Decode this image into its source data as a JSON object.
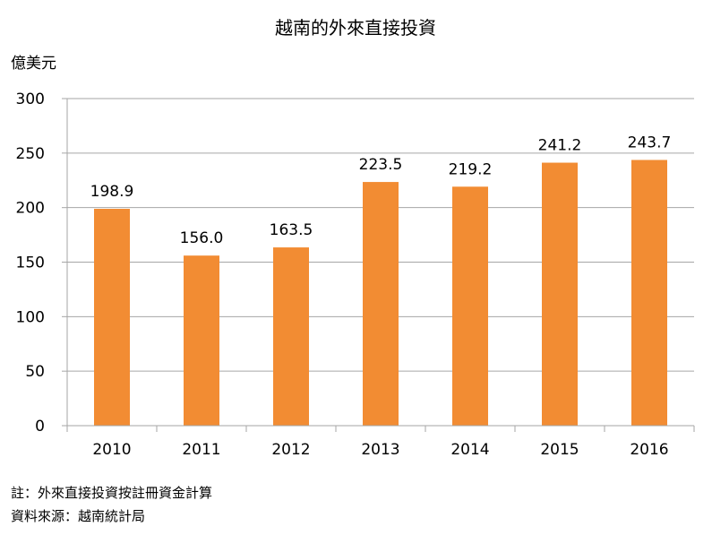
{
  "chart_data": {
    "type": "bar",
    "title": "越南的外來直接投資",
    "ylabel": "億美元",
    "xlabel": "",
    "categories": [
      "2010",
      "2011",
      "2012",
      "2013",
      "2014",
      "2015",
      "2016"
    ],
    "values": [
      198.9,
      156.0,
      163.5,
      223.5,
      219.2,
      241.2,
      243.7
    ],
    "value_labels": [
      "198.9",
      "156.0",
      "163.5",
      "223.5",
      "219.2",
      "241.2",
      "243.7"
    ],
    "ylim": [
      0,
      300
    ],
    "yticks": [
      0,
      50,
      100,
      150,
      200,
      250,
      300
    ],
    "grid": true,
    "legend": "none",
    "bar_color": "#F28C33",
    "grid_color": "#A6A6A6"
  },
  "notes": {
    "note": "註：外來直接投資按註冊資金計算",
    "source": "資料來源：越南統計局"
  }
}
